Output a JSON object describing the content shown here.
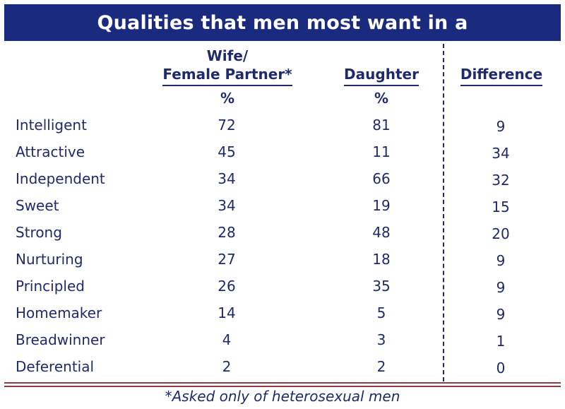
{
  "chart_data": {
    "type": "table",
    "title": "Qualities that men most want in a",
    "columns": [
      {
        "header_lines": [
          "Wife/",
          "Female Partner*"
        ],
        "unit": "%"
      },
      {
        "header_lines": [
          "Daughter"
        ],
        "unit": "%"
      },
      {
        "header_lines": [
          "Difference"
        ],
        "unit": ""
      }
    ],
    "rows": [
      {
        "label": "Intelligent",
        "wife": 72,
        "daughter": 81,
        "difference": 9
      },
      {
        "label": "Attractive",
        "wife": 45,
        "daughter": 11,
        "difference": 34
      },
      {
        "label": "Independent",
        "wife": 34,
        "daughter": 66,
        "difference": 32
      },
      {
        "label": "Sweet",
        "wife": 34,
        "daughter": 19,
        "difference": 15
      },
      {
        "label": "Strong",
        "wife": 28,
        "daughter": 48,
        "difference": 20
      },
      {
        "label": "Nurturing",
        "wife": 27,
        "daughter": 18,
        "difference": 9
      },
      {
        "label": "Principled",
        "wife": 26,
        "daughter": 35,
        "difference": 9
      },
      {
        "label": "Homemaker",
        "wife": 14,
        "daughter": 5,
        "difference": 9
      },
      {
        "label": "Breadwinner",
        "wife": 4,
        "daughter": 3,
        "difference": 1
      },
      {
        "label": "Deferential",
        "wife": 2,
        "daughter": 2,
        "difference": 0
      }
    ],
    "footnote": "*Asked only of heterosexual men",
    "colors": {
      "title_bg": "#1a2a7e",
      "text": "#1f2a6b",
      "rule": "#8f3d45"
    }
  }
}
